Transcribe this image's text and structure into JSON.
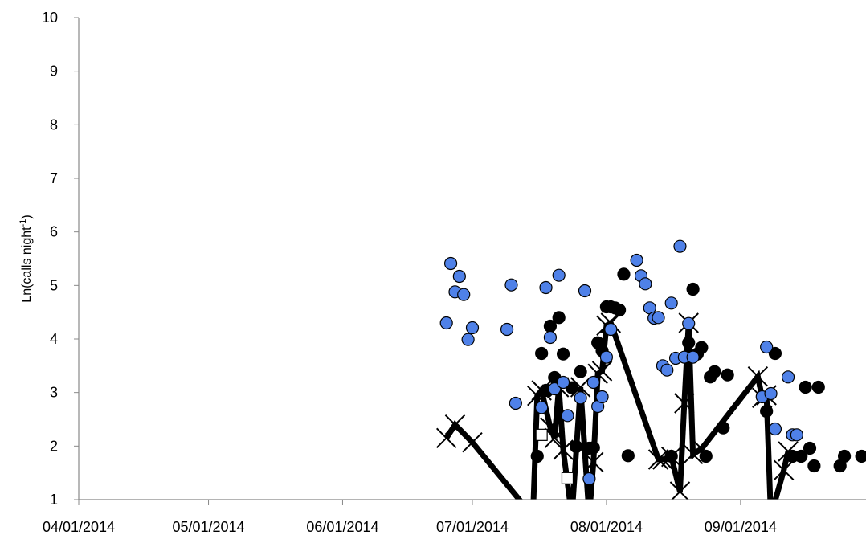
{
  "chart_data": {
    "type": "scatter",
    "ylabel_parts": [
      "Ln(calls night",
      "-1",
      ")"
    ],
    "xlim": [
      "2014-04-01",
      "2014-09-30"
    ],
    "xticks": [
      {
        "value": "2014-04-01",
        "label": "04/01/2014"
      },
      {
        "value": "2014-05-01",
        "label": "05/01/2014"
      },
      {
        "value": "2014-06-01",
        "label": "06/01/2014"
      },
      {
        "value": "2014-07-01",
        "label": "07/01/2014"
      },
      {
        "value": "2014-08-01",
        "label": "08/01/2014"
      },
      {
        "value": "2014-09-01",
        "label": "09/01/2014"
      }
    ],
    "ylim": [
      1,
      10
    ],
    "yticks": [
      1,
      2,
      3,
      4,
      5,
      6,
      7,
      8,
      9,
      10
    ],
    "grid": false,
    "series": [
      {
        "color": "#000000",
        "marker": "x",
        "line": true,
        "x": [
          "2014-06-25",
          "2014-06-27",
          "2014-07-01",
          "2014-07-15",
          "2014-07-16",
          "2014-07-17",
          "2014-07-19",
          "2014-07-20",
          "2014-07-21",
          "2014-07-22",
          "2014-07-24",
          "2014-07-26",
          "2014-07-28",
          "2014-07-29",
          "2014-07-30",
          "2014-07-31",
          "2014-08-01",
          "2014-08-02",
          "2014-08-13",
          "2014-08-14",
          "2014-08-16",
          "2014-08-18",
          "2014-08-19",
          "2014-08-20",
          "2014-08-21",
          "2014-08-23",
          "2014-09-05",
          "2014-09-06",
          "2014-09-07",
          "2014-09-08",
          "2014-09-11",
          "2014-09-12"
        ],
        "values": [
          2.15,
          2.4,
          2.07,
          0.69,
          2.94,
          3.04,
          2.35,
          2.15,
          3.1,
          1.93,
          0.69,
          3.1,
          0.69,
          1.7,
          3.35,
          3.4,
          4.25,
          4.3,
          1.75,
          1.75,
          1.8,
          1.15,
          2.8,
          4.3,
          1.85,
          1.95,
          3.3,
          2.9,
          2.95,
          0.69,
          1.55,
          1.9
        ]
      },
      {
        "color": "#000000",
        "marker": "circle",
        "x": [
          "2014-07-16",
          "2014-07-17",
          "2014-07-18",
          "2014-07-19",
          "2014-07-20",
          "2014-07-21",
          "2014-07-22",
          "2014-07-24",
          "2014-07-25",
          "2014-07-26",
          "2014-07-28",
          "2014-07-29",
          "2014-07-30",
          "2014-07-31",
          "2014-08-01",
          "2014-08-02",
          "2014-08-03",
          "2014-08-04",
          "2014-08-05",
          "2014-08-06",
          "2014-08-16",
          "2014-08-20",
          "2014-08-21",
          "2014-08-22",
          "2014-08-23",
          "2014-08-24",
          "2014-08-25",
          "2014-08-26",
          "2014-08-28",
          "2014-08-29",
          "2014-09-07",
          "2014-09-09",
          "2014-09-13",
          "2014-09-15",
          "2014-09-16",
          "2014-09-17",
          "2014-09-18",
          "2014-09-19",
          "2014-09-24",
          "2014-09-25",
          "2014-09-29"
        ],
        "values": [
          1.81,
          3.73,
          3.04,
          4.24,
          3.28,
          4.4,
          3.72,
          3.09,
          1.99,
          3.39,
          1.96,
          1.97,
          3.93,
          3.78,
          4.6,
          4.6,
          4.58,
          4.54,
          5.21,
          1.82,
          1.81,
          3.93,
          4.93,
          3.72,
          3.84,
          1.81,
          3.29,
          3.39,
          2.34,
          3.33,
          2.65,
          3.73,
          1.81,
          1.81,
          3.1,
          1.96,
          1.63,
          3.1,
          1.63,
          1.81,
          1.81
        ]
      },
      {
        "color": "#4f81e8",
        "marker": "circle",
        "x": [
          "2014-06-25",
          "2014-06-26",
          "2014-06-27",
          "2014-06-28",
          "2014-06-29",
          "2014-06-30",
          "2014-07-01",
          "2014-07-09",
          "2014-07-10",
          "2014-07-11",
          "2014-07-17",
          "2014-07-18",
          "2014-07-19",
          "2014-07-20",
          "2014-07-21",
          "2014-07-22",
          "2014-07-23",
          "2014-07-26",
          "2014-07-27",
          "2014-07-28",
          "2014-07-29",
          "2014-07-30",
          "2014-07-31",
          "2014-08-01",
          "2014-08-02",
          "2014-08-08",
          "2014-08-09",
          "2014-08-10",
          "2014-08-11",
          "2014-08-12",
          "2014-08-13",
          "2014-08-14",
          "2014-08-15",
          "2014-08-16",
          "2014-08-17",
          "2014-08-18",
          "2014-08-19",
          "2014-08-20",
          "2014-08-21",
          "2014-09-06",
          "2014-09-07",
          "2014-09-08",
          "2014-09-09",
          "2014-09-12",
          "2014-09-13",
          "2014-09-14"
        ],
        "values": [
          4.3,
          5.41,
          4.88,
          5.17,
          4.83,
          3.99,
          4.21,
          4.18,
          5.01,
          2.8,
          2.72,
          4.96,
          4.03,
          3.07,
          5.19,
          3.19,
          2.57,
          2.9,
          4.9,
          1.39,
          3.19,
          2.74,
          2.92,
          3.66,
          4.18,
          5.47,
          5.18,
          5.03,
          4.58,
          4.39,
          4.4,
          3.5,
          3.42,
          4.67,
          3.64,
          5.73,
          3.66,
          4.29,
          3.66,
          2.92,
          3.85,
          2.98,
          2.32,
          3.29,
          2.21,
          2.21
        ]
      },
      {
        "color": "#ffffff",
        "marker": "square",
        "x": [
          "2014-07-17",
          "2014-07-23"
        ],
        "values": [
          2.21,
          1.4
        ]
      }
    ]
  }
}
